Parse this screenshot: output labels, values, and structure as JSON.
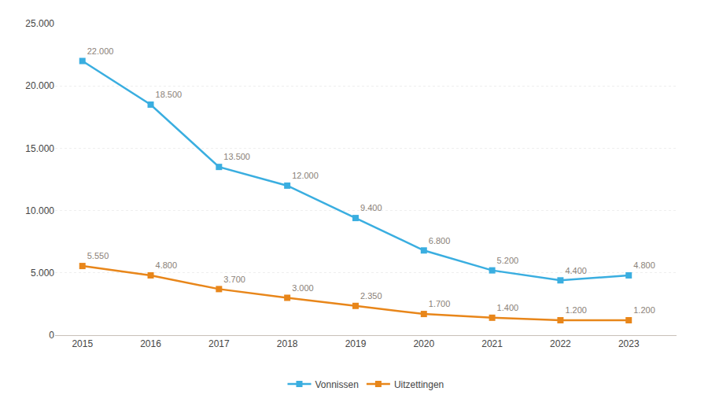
{
  "chart_data": {
    "type": "line",
    "x": [
      2015,
      2016,
      2017,
      2018,
      2019,
      2020,
      2021,
      2022,
      2023
    ],
    "xlim": [
      2014.6,
      2023.7
    ],
    "xticks": [
      2015,
      2016,
      2017,
      2018,
      2019,
      2020,
      2021,
      2022,
      2023
    ],
    "ylim": [
      0,
      25000
    ],
    "yticks": [
      0,
      {
        "value": 5000,
        "label": "5.000"
      },
      {
        "value": 10000,
        "label": "10.000"
      },
      {
        "value": 15000,
        "label": "15.000"
      },
      {
        "value": 20000,
        "label": "20.000"
      },
      {
        "value": 25000,
        "label": "25.000"
      }
    ],
    "grid": true,
    "legend": "bottom",
    "data_labels": true,
    "marker": "square",
    "series": [
      {
        "name": "Vonnissen",
        "color": "#3aaee0",
        "values": [
          22000,
          18500,
          13500,
          12000,
          9400,
          6800,
          5200,
          4400,
          4800
        ],
        "value_labels": [
          "22.000",
          "18.500",
          "13.500",
          "12.000",
          "9.400",
          "6.800",
          "5.200",
          "4.400",
          "4.800"
        ]
      },
      {
        "name": "Uitzettingen",
        "color": "#e8861a",
        "values": [
          5550,
          4800,
          3700,
          3000,
          2350,
          1700,
          1400,
          1200,
          1200
        ],
        "value_labels": [
          "5.550",
          "4.800",
          "3.700",
          "3.000",
          "2.350",
          "1.700",
          "1.400",
          "1.200",
          "1.200"
        ]
      }
    ]
  }
}
